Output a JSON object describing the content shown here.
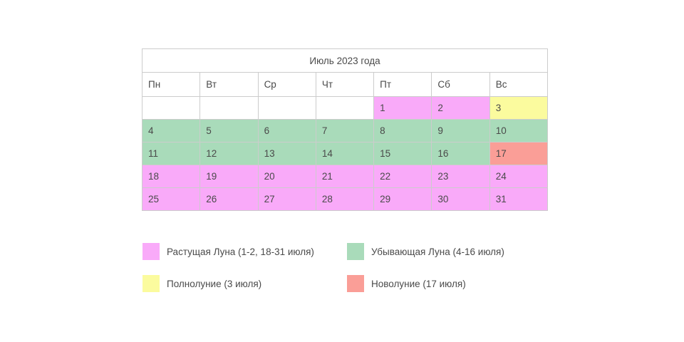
{
  "calendar": {
    "title": "Июль 2023 года",
    "day_headers": [
      "Пн",
      "Вт",
      "Ср",
      "Чт",
      "Пт",
      "Сб",
      "Вс"
    ],
    "weeks": [
      [
        {
          "day": "",
          "type": "empty"
        },
        {
          "day": "",
          "type": "empty"
        },
        {
          "day": "",
          "type": "empty"
        },
        {
          "day": "",
          "type": "empty"
        },
        {
          "day": "1",
          "type": "waxing"
        },
        {
          "day": "2",
          "type": "waxing"
        },
        {
          "day": "3",
          "type": "full"
        }
      ],
      [
        {
          "day": "4",
          "type": "waning"
        },
        {
          "day": "5",
          "type": "waning"
        },
        {
          "day": "6",
          "type": "waning"
        },
        {
          "day": "7",
          "type": "waning"
        },
        {
          "day": "8",
          "type": "waning"
        },
        {
          "day": "9",
          "type": "waning"
        },
        {
          "day": "10",
          "type": "waning"
        }
      ],
      [
        {
          "day": "11",
          "type": "waning"
        },
        {
          "day": "12",
          "type": "waning"
        },
        {
          "day": "13",
          "type": "waning"
        },
        {
          "day": "14",
          "type": "waning"
        },
        {
          "day": "15",
          "type": "waning"
        },
        {
          "day": "16",
          "type": "waning"
        },
        {
          "day": "17",
          "type": "new"
        }
      ],
      [
        {
          "day": "18",
          "type": "waxing"
        },
        {
          "day": "19",
          "type": "waxing"
        },
        {
          "day": "20",
          "type": "waxing"
        },
        {
          "day": "21",
          "type": "waxing"
        },
        {
          "day": "22",
          "type": "waxing"
        },
        {
          "day": "23",
          "type": "waxing"
        },
        {
          "day": "24",
          "type": "waxing"
        }
      ],
      [
        {
          "day": "25",
          "type": "waxing"
        },
        {
          "day": "26",
          "type": "waxing"
        },
        {
          "day": "27",
          "type": "waxing"
        },
        {
          "day": "28",
          "type": "waxing"
        },
        {
          "day": "29",
          "type": "waxing"
        },
        {
          "day": "30",
          "type": "waxing"
        },
        {
          "day": "31",
          "type": "waxing"
        }
      ]
    ]
  },
  "legend": {
    "items": [
      {
        "label": "Растущая Луна (1-2, 18-31 июля)",
        "type": "waxing",
        "swatch_name": "waxing-moon-swatch"
      },
      {
        "label": "Убывающая Луна (4-16 июля)",
        "type": "waning",
        "swatch_name": "waning-moon-swatch"
      },
      {
        "label": "Полнолуние (3 июля)",
        "type": "full",
        "swatch_name": "full-moon-swatch"
      },
      {
        "label": "Новолуние (17 июля)",
        "type": "new",
        "swatch_name": "new-moon-swatch"
      }
    ]
  },
  "colors": {
    "waxing": "#F9AAF9",
    "waning": "#A9DBBA",
    "full": "#FBFB9E",
    "new": "#FA9E97",
    "empty": "#FFFFFF"
  }
}
